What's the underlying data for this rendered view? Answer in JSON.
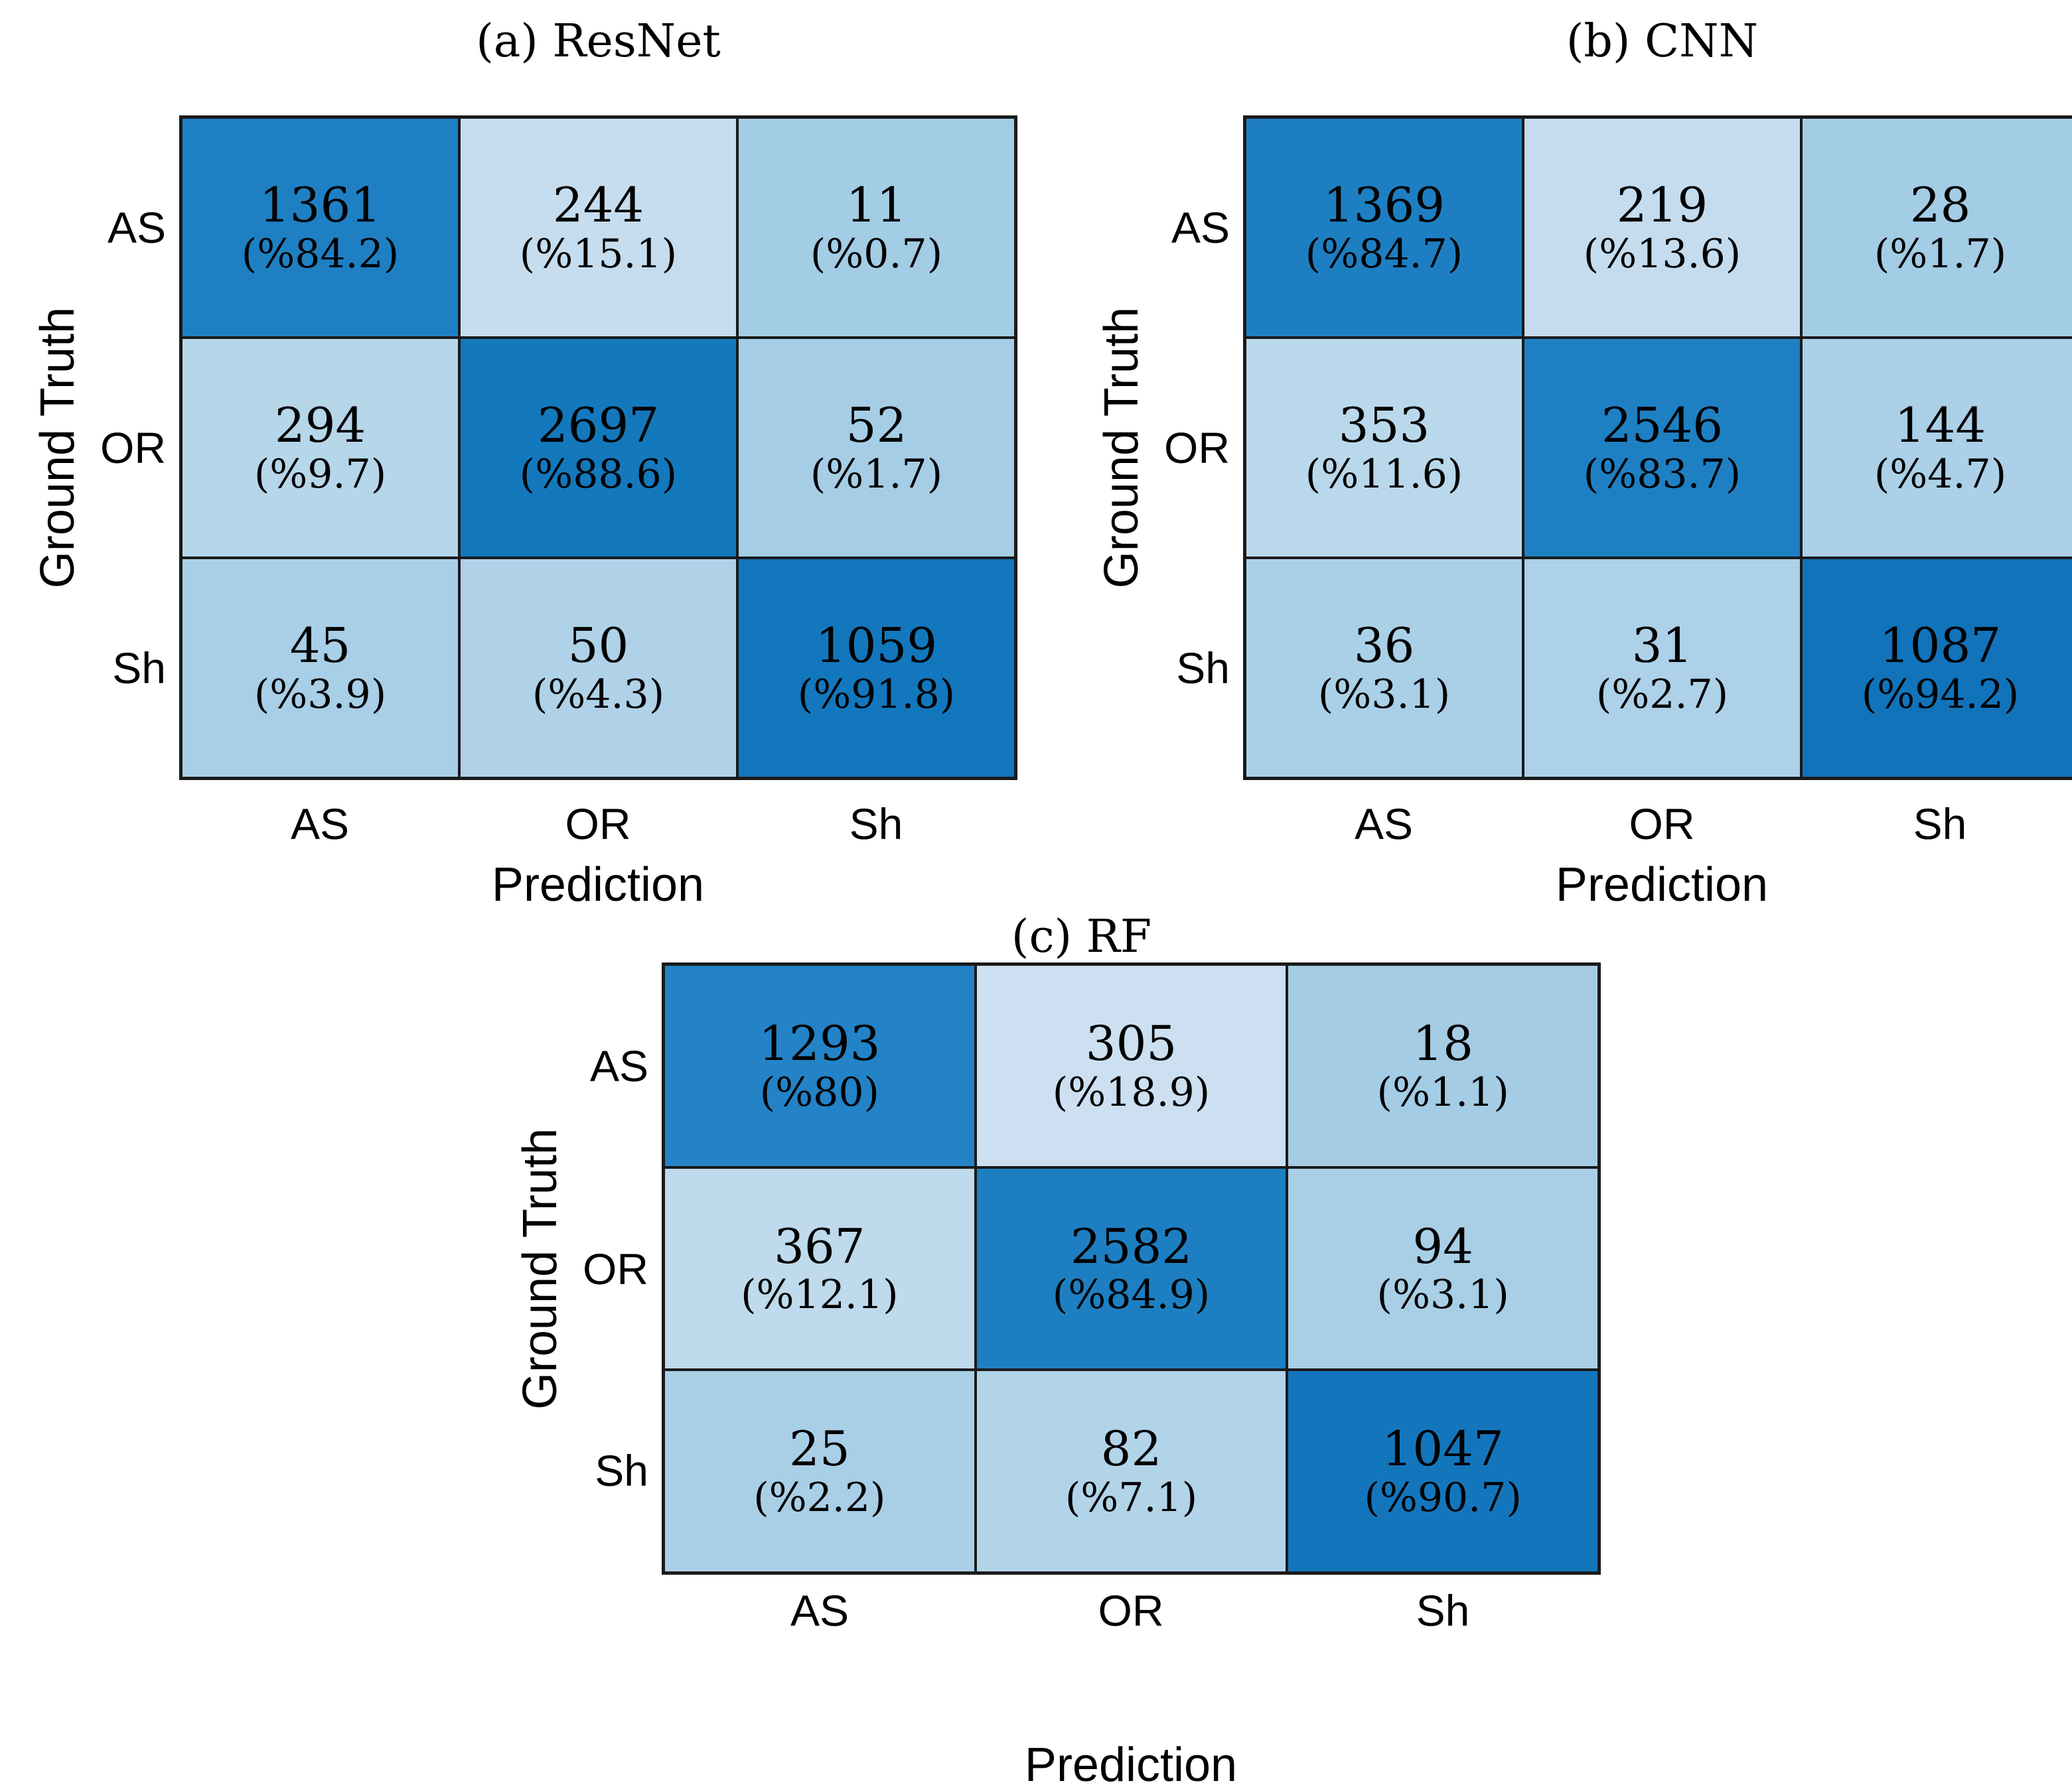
{
  "figure": {
    "background": "#ffffff",
    "grid_line_color": "#1a1a1a"
  },
  "subplots": [
    {
      "key": "resnet",
      "title": "(a) ResNet",
      "xlabel": "Prediction",
      "ylabel": "Ground Truth",
      "row_labels": [
        "AS",
        "OR",
        "Sh"
      ],
      "col_labels": [
        "AS",
        "OR",
        "Sh"
      ],
      "cells": [
        [
          {
            "count": "1361",
            "pct": "(%84.2)",
            "color": "#1e80c3"
          },
          {
            "count": "244",
            "pct": "(%15.1)",
            "color": "#c6ddef"
          },
          {
            "count": "11",
            "pct": "(%0.7)",
            "color": "#a3cce5"
          }
        ],
        [
          {
            "count": "294",
            "pct": "(%9.7)",
            "color": "#b6d6ea"
          },
          {
            "count": "2697",
            "pct": "(%88.6)",
            "color": "#1478bd"
          },
          {
            "count": "52",
            "pct": "(%1.7)",
            "color": "#a5cde6"
          }
        ],
        [
          {
            "count": "45",
            "pct": "(%3.9)",
            "color": "#a8cfe7"
          },
          {
            "count": "50",
            "pct": "(%4.3)",
            "color": "#afd2e8"
          },
          {
            "count": "1059",
            "pct": "(%91.8)",
            "color": "#1377bd"
          }
        ]
      ]
    },
    {
      "key": "cnn",
      "title": "(b) CNN",
      "xlabel": "Prediction",
      "ylabel": "Ground Truth",
      "row_labels": [
        "AS",
        "OR",
        "Sh"
      ],
      "col_labels": [
        "AS",
        "OR",
        "Sh"
      ],
      "cells": [
        [
          {
            "count": "1369",
            "pct": "(%84.7)",
            "color": "#1d7fc2"
          },
          {
            "count": "219",
            "pct": "(%13.6)",
            "color": "#c4dcee"
          },
          {
            "count": "28",
            "pct": "(%1.7)",
            "color": "#a3cce5"
          }
        ],
        [
          {
            "count": "353",
            "pct": "(%11.6)",
            "color": "#bad8eb"
          },
          {
            "count": "2546",
            "pct": "(%83.7)",
            "color": "#1e80c3"
          },
          {
            "count": "144",
            "pct": "(%4.7)",
            "color": "#abd0e7"
          }
        ],
        [
          {
            "count": "36",
            "pct": "(%3.1)",
            "color": "#aad0e7"
          },
          {
            "count": "31",
            "pct": "(%2.7)",
            "color": "#add1e8"
          },
          {
            "count": "1087",
            "pct": "(%94.2)",
            "color": "#1173ba"
          }
        ]
      ]
    },
    {
      "key": "rf",
      "title": "(c) RF",
      "xlabel": "Prediction",
      "ylabel": "Ground Truth",
      "row_labels": [
        "AS",
        "OR",
        "Sh"
      ],
      "col_labels": [
        "AS",
        "OR",
        "Sh"
      ],
      "cells": [
        [
          {
            "count": "1293",
            "pct": "(%80)",
            "color": "#2383c6"
          },
          {
            "count": "305",
            "pct": "(%18.9)",
            "color": "#cce0f1"
          },
          {
            "count": "18",
            "pct": "(%1.1)",
            "color": "#a4cce5"
          }
        ],
        [
          {
            "count": "367",
            "pct": "(%12.1)",
            "color": "#bedaec"
          },
          {
            "count": "2582",
            "pct": "(%84.9)",
            "color": "#1d7fc2"
          },
          {
            "count": "94",
            "pct": "(%3.1)",
            "color": "#a9cfe7"
          }
        ],
        [
          {
            "count": "25",
            "pct": "(%2.2)",
            "color": "#a9cfe7"
          },
          {
            "count": "82",
            "pct": "(%7.1)",
            "color": "#b2d4e9"
          },
          {
            "count": "1047",
            "pct": "(%90.7)",
            "color": "#1376bd"
          }
        ]
      ]
    }
  ],
  "chart_data": [
    {
      "type": "heatmap",
      "title": "(a) ResNet",
      "xlabel": "Prediction",
      "ylabel": "Ground Truth",
      "x_tick_labels": [
        "AS",
        "OR",
        "Sh"
      ],
      "y_tick_labels": [
        "AS",
        "OR",
        "Sh"
      ],
      "counts": [
        [
          1361,
          244,
          11
        ],
        [
          294,
          2697,
          52
        ],
        [
          45,
          50,
          1059
        ]
      ],
      "percents": [
        [
          84.2,
          15.1,
          0.7
        ],
        [
          9.7,
          88.6,
          1.7
        ],
        [
          3.9,
          4.3,
          91.8
        ]
      ],
      "cell_label_format": "count newline (%percent)",
      "legend": "none",
      "grid": "black cell borders"
    },
    {
      "type": "heatmap",
      "title": "(b) CNN",
      "xlabel": "Prediction",
      "ylabel": "Ground Truth",
      "x_tick_labels": [
        "AS",
        "OR",
        "Sh"
      ],
      "y_tick_labels": [
        "AS",
        "OR",
        "Sh"
      ],
      "counts": [
        [
          1369,
          219,
          28
        ],
        [
          353,
          2546,
          144
        ],
        [
          36,
          31,
          1087
        ]
      ],
      "percents": [
        [
          84.7,
          13.6,
          1.7
        ],
        [
          11.6,
          83.7,
          4.7
        ],
        [
          3.1,
          2.7,
          94.2
        ]
      ],
      "cell_label_format": "count newline (%percent)",
      "legend": "none",
      "grid": "black cell borders"
    },
    {
      "type": "heatmap",
      "title": "(c) RF",
      "xlabel": "Prediction",
      "ylabel": "Ground Truth",
      "x_tick_labels": [
        "AS",
        "OR",
        "Sh"
      ],
      "y_tick_labels": [
        "AS",
        "OR",
        "Sh"
      ],
      "counts": [
        [
          1293,
          305,
          18
        ],
        [
          367,
          2582,
          94
        ],
        [
          25,
          82,
          1047
        ]
      ],
      "percents": [
        [
          80,
          18.9,
          1.1
        ],
        [
          12.1,
          84.9,
          3.1
        ],
        [
          2.2,
          7.1,
          90.7
        ]
      ],
      "cell_label_format": "count newline (%percent)",
      "legend": "none",
      "grid": "black cell borders"
    }
  ]
}
